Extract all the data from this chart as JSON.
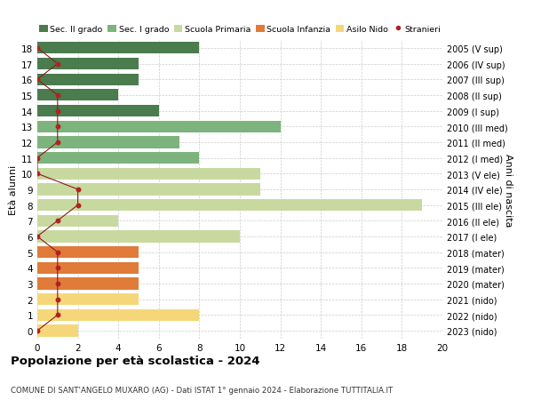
{
  "ages": [
    0,
    1,
    2,
    3,
    4,
    5,
    6,
    7,
    8,
    9,
    10,
    11,
    12,
    13,
    14,
    15,
    16,
    17,
    18
  ],
  "right_labels": [
    "2023 (nido)",
    "2022 (nido)",
    "2021 (nido)",
    "2020 (mater)",
    "2019 (mater)",
    "2018 (mater)",
    "2017 (I ele)",
    "2016 (II ele)",
    "2015 (III ele)",
    "2014 (IV ele)",
    "2013 (V ele)",
    "2012 (I med)",
    "2011 (II med)",
    "2010 (III med)",
    "2009 (I sup)",
    "2008 (II sup)",
    "2007 (III sup)",
    "2006 (IV sup)",
    "2005 (V sup)"
  ],
  "bar_values": [
    2,
    8,
    5,
    5,
    5,
    5,
    10,
    4,
    19,
    11,
    11,
    8,
    7,
    12,
    6,
    4,
    5,
    5,
    8
  ],
  "bar_colors": [
    "#f5d77a",
    "#f5d77a",
    "#f5d77a",
    "#e07b39",
    "#e07b39",
    "#e07b39",
    "#c8d9a0",
    "#c8d9a0",
    "#c8d9a0",
    "#c8d9a0",
    "#c8d9a0",
    "#7db37d",
    "#7db37d",
    "#7db37d",
    "#4a7c4e",
    "#4a7c4e",
    "#4a7c4e",
    "#4a7c4e",
    "#4a7c4e"
  ],
  "stranieri_x": [
    0,
    1,
    1,
    1,
    1,
    1,
    0,
    1,
    2,
    2,
    0,
    0,
    1,
    1,
    1,
    1,
    0,
    1,
    0
  ],
  "legend_labels": [
    "Sec. II grado",
    "Sec. I grado",
    "Scuola Primaria",
    "Scuola Infanzia",
    "Asilo Nido",
    "Stranieri"
  ],
  "legend_colors": [
    "#4a7c4e",
    "#7db37d",
    "#c8d9a0",
    "#e07b39",
    "#f5d77a",
    "#b22222"
  ],
  "ylabel_left": "Età alunni",
  "ylabel_right": "Anni di nascita",
  "title": "Popolazione per età scolastica - 2024",
  "subtitle": "COMUNE DI SANT'ANGELO MUXARO (AG) - Dati ISTAT 1° gennaio 2024 - Elaborazione TUTTITALIA.IT",
  "xlim": [
    0,
    20
  ],
  "xticks": [
    0,
    2,
    4,
    6,
    8,
    10,
    12,
    14,
    16,
    18,
    20
  ],
  "bg_color": "#ffffff",
  "grid_color": "#cccccc"
}
